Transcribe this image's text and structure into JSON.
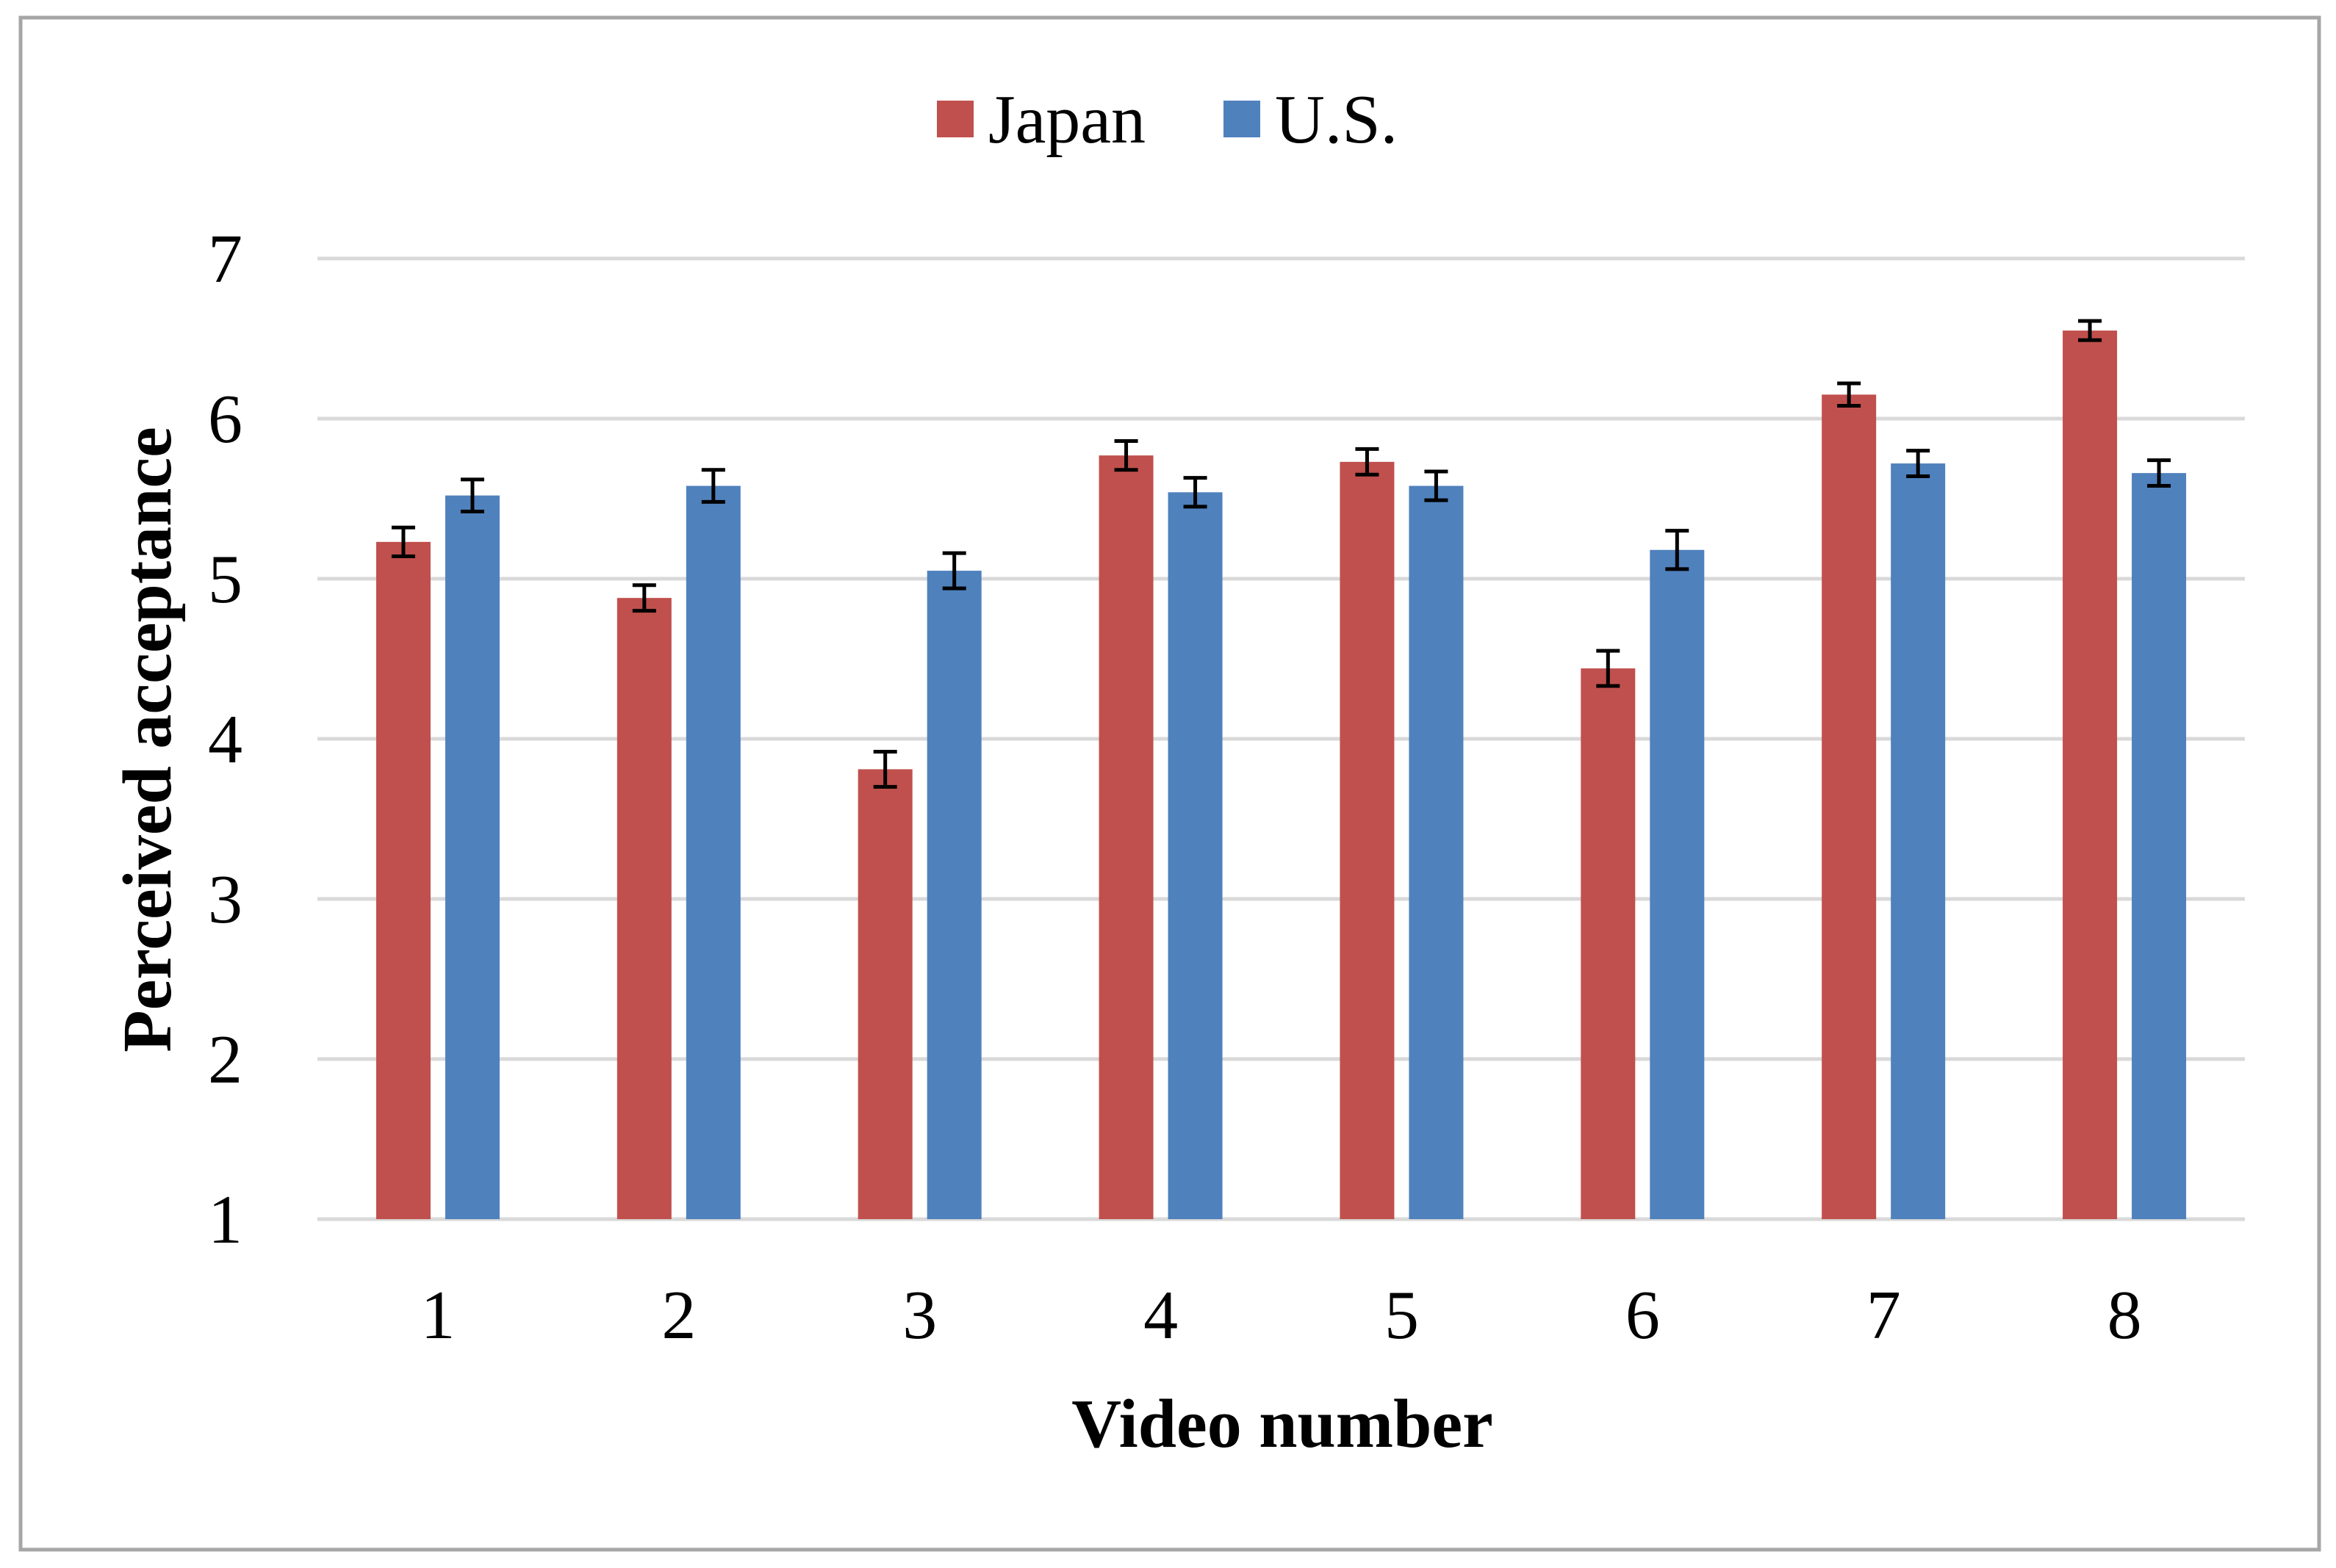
{
  "chart_data": {
    "type": "bar",
    "title": "",
    "xlabel": "Video number",
    "ylabel": "Perceived acceptance",
    "categories": [
      "1",
      "2",
      "3",
      "4",
      "5",
      "6",
      "7",
      "8"
    ],
    "series": [
      {
        "name": "Japan",
        "color": "#C0504D",
        "values": [
          5.23,
          4.88,
          3.81,
          5.77,
          5.73,
          4.44,
          6.15,
          6.55
        ],
        "error": [
          0.09,
          0.08,
          0.11,
          0.09,
          0.08,
          0.11,
          0.07,
          0.06
        ]
      },
      {
        "name": "U.S.",
        "color": "#4F81BD",
        "values": [
          5.52,
          5.58,
          5.05,
          5.54,
          5.58,
          5.18,
          5.72,
          5.66
        ],
        "error": [
          0.1,
          0.1,
          0.11,
          0.09,
          0.09,
          0.12,
          0.08,
          0.08
        ]
      }
    ],
    "ylim": [
      1,
      7
    ],
    "yticks": [
      "1",
      "2",
      "3",
      "4",
      "5",
      "6",
      "7"
    ],
    "grid": true,
    "legend_position": "top-center",
    "error_bars": true,
    "grid_color": "#D9D9D9",
    "border_color": "#A6A6A6"
  }
}
